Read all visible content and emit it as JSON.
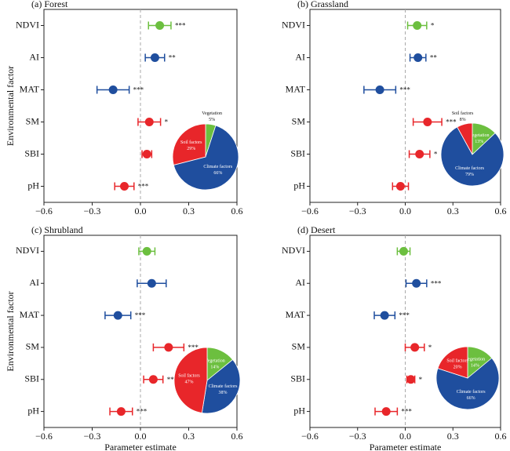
{
  "chart_data": [
    {
      "type": "errorbar",
      "title": "(a) Forest",
      "y_label": "Environmental factor",
      "categories": [
        "NDVI",
        "AI",
        "MAT",
        "SM",
        "SBI",
        "pH"
      ],
      "values": [
        0.12,
        0.09,
        -0.17,
        0.055,
        0.04,
        -0.1
      ],
      "errors": [
        0.07,
        0.06,
        0.1,
        0.07,
        0.03,
        0.06
      ],
      "colors": [
        "#6cbf3f",
        "#1f4e9e",
        "#1f4e9e",
        "#e8262a",
        "#e8262a",
        "#e8262a"
      ],
      "sig": [
        "***",
        "**",
        "***",
        "*",
        null,
        "***"
      ],
      "xlim": [
        -0.6,
        0.6
      ],
      "xticks": [
        {
          "value": -0.6,
          "label": "−0.6"
        },
        {
          "value": -0.3,
          "label": "−0.3"
        },
        {
          "value": 0,
          "label": "0.0"
        },
        0.3,
        0.6
      ],
      "pie": {
        "type": "pie",
        "categories": [
          "Vegetation",
          "Climate factors",
          "Soil factors"
        ],
        "values": [
          5,
          66,
          29
        ],
        "value_labels": [
          "5%",
          "66%",
          "29%"
        ],
        "colors": [
          "#6cbf3f",
          "#1f4e9e",
          "#e8262a"
        ]
      }
    },
    {
      "type": "errorbar",
      "title": "(b) Grassland",
      "categories": [
        "NDVI",
        "AI",
        "MAT",
        "SM",
        "SBI",
        "pH"
      ],
      "values": [
        0.075,
        0.08,
        -0.16,
        0.14,
        0.09,
        -0.03
      ],
      "errors": [
        0.06,
        0.05,
        0.1,
        0.09,
        0.065,
        0.05
      ],
      "colors": [
        "#6cbf3f",
        "#1f4e9e",
        "#1f4e9e",
        "#e8262a",
        "#e8262a",
        "#e8262a"
      ],
      "sig": [
        "*",
        "**",
        "***",
        "***",
        "*",
        null
      ],
      "xlim": [
        -0.6,
        0.6
      ],
      "xticks": [
        {
          "value": -0.6,
          "label": "−0.6"
        },
        {
          "value": -0.3,
          "label": "−0.3"
        },
        {
          "value": 0,
          "label": "0.0"
        },
        0.3,
        0.6
      ],
      "pie": {
        "type": "pie",
        "categories": [
          "Vegetation",
          "Climate factors",
          "Soil factors"
        ],
        "values": [
          13,
          79,
          8
        ],
        "value_labels": [
          "13%",
          "79%",
          "8%"
        ],
        "colors": [
          "#6cbf3f",
          "#1f4e9e",
          "#e8262a"
        ]
      }
    },
    {
      "type": "errorbar",
      "title": "(c) Shrubland",
      "y_label": "Environmental factor",
      "x_label": "Parameter estimate",
      "categories": [
        "NDVI",
        "AI",
        "MAT",
        "SM",
        "SBI",
        "pH"
      ],
      "values": [
        0.04,
        0.07,
        -0.14,
        0.175,
        0.08,
        -0.12
      ],
      "errors": [
        0.05,
        0.09,
        0.08,
        0.095,
        0.06,
        0.07
      ],
      "colors": [
        "#6cbf3f",
        "#1f4e9e",
        "#1f4e9e",
        "#e8262a",
        "#e8262a",
        "#e8262a"
      ],
      "sig": [
        null,
        null,
        "***",
        "***",
        "**",
        "***"
      ],
      "xlim": [
        -0.6,
        0.6
      ],
      "xticks": [
        {
          "value": -0.6,
          "label": "−0.6"
        },
        {
          "value": -0.3,
          "label": "−0.3"
        },
        {
          "value": 0,
          "label": "0.0"
        },
        0.3,
        0.6
      ],
      "pie": {
        "type": "pie",
        "categories": [
          "Vegetation",
          "Climate factors",
          "Soil factors"
        ],
        "values": [
          14,
          38,
          47
        ],
        "value_labels": [
          "14%",
          "38%",
          "47%"
        ],
        "colors": [
          "#6cbf3f",
          "#1f4e9e",
          "#e8262a"
        ]
      }
    },
    {
      "type": "errorbar",
      "title": "(d) Desert",
      "x_label": "Parameter estimate",
      "categories": [
        "NDVI",
        "AI",
        "MAT",
        "SM",
        "SBI",
        "pH"
      ],
      "values": [
        -0.01,
        0.07,
        -0.13,
        0.06,
        0.035,
        -0.12
      ],
      "errors": [
        0.04,
        0.065,
        0.065,
        0.06,
        0.025,
        0.07
      ],
      "colors": [
        "#6cbf3f",
        "#1f4e9e",
        "#1f4e9e",
        "#e8262a",
        "#e8262a",
        "#e8262a"
      ],
      "sig": [
        null,
        "***",
        "***",
        "*",
        "*",
        "***"
      ],
      "xlim": [
        -0.6,
        0.6
      ],
      "xticks": [
        {
          "value": -0.6,
          "label": "−0.6"
        },
        {
          "value": -0.3,
          "label": "−0.3"
        },
        {
          "value": 0,
          "label": "0.0"
        },
        0.3,
        0.6
      ],
      "pie": {
        "type": "pie",
        "categories": [
          "Vegetation",
          "Climate factors",
          "Soil factors"
        ],
        "values": [
          14,
          66,
          20
        ],
        "value_labels": [
          "14%",
          "66%",
          "20%"
        ],
        "colors": [
          "#6cbf3f",
          "#1f4e9e",
          "#e8262a"
        ]
      }
    }
  ]
}
